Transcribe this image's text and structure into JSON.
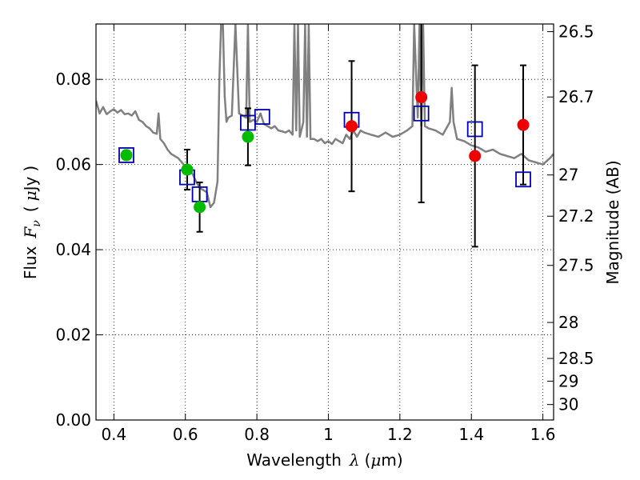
{
  "chart_data": {
    "type": "scatter",
    "xlabel": {
      "prefix": "Wavelength",
      "symbol": "λ",
      "unit_open": "(",
      "unit_mu": "μ",
      "unit_rest": "m)"
    },
    "ylabel": {
      "prefix": "Flux",
      "symbol": "F",
      "subscript": "ν",
      "unit_open": "(",
      "unit_mu": "μ",
      "unit_rest": "Jy",
      "unit_close": ")"
    },
    "y2label": "Magnitude (AB)",
    "xlim": [
      0.35,
      1.63
    ],
    "ylim": [
      0.0,
      0.093
    ],
    "grid": true,
    "x_ticks": [
      {
        "value": 0.4,
        "label": "0.4"
      },
      {
        "value": 0.6,
        "label": "0.6"
      },
      {
        "value": 0.8,
        "label": "0.8"
      },
      {
        "value": 1.0,
        "label": "1"
      },
      {
        "value": 1.2,
        "label": "1.2"
      },
      {
        "value": 1.4,
        "label": "1.4"
      },
      {
        "value": 1.6,
        "label": "1.6"
      }
    ],
    "y_ticks": [
      {
        "value": 0.0,
        "label": "0.00"
      },
      {
        "value": 0.02,
        "label": "0.02"
      },
      {
        "value": 0.04,
        "label": "0.04"
      },
      {
        "value": 0.06,
        "label": "0.06"
      },
      {
        "value": 0.08,
        "label": "0.08"
      }
    ],
    "y2_ticks": [
      {
        "mag": 26.5,
        "label": "26.5"
      },
      {
        "mag": 26.7,
        "label": "26.7"
      },
      {
        "mag": 27.0,
        "label": "27"
      },
      {
        "mag": 27.2,
        "label": "27.2"
      },
      {
        "mag": 27.5,
        "label": "27.5"
      },
      {
        "mag": 28.0,
        "label": "28"
      },
      {
        "mag": 28.5,
        "label": "28.5"
      },
      {
        "mag": 29.0,
        "label": "29"
      },
      {
        "mag": 30.0,
        "label": "30"
      }
    ],
    "colors": {
      "model": "#808080",
      "green": "#00bb00",
      "red": "#ee0000",
      "square": "#0000aa",
      "errorbar": "#000000",
      "grid": "#000000"
    },
    "series": [
      {
        "marker": "line",
        "color": "model",
        "x": [
          0.35,
          0.36,
          0.37,
          0.38,
          0.39,
          0.4,
          0.41,
          0.42,
          0.43,
          0.44,
          0.45,
          0.46,
          0.47,
          0.48,
          0.49,
          0.5,
          0.51,
          0.52,
          0.525,
          0.53,
          0.54,
          0.55,
          0.56,
          0.57,
          0.58,
          0.59,
          0.6,
          0.61,
          0.62,
          0.63,
          0.64,
          0.65,
          0.66,
          0.67,
          0.68,
          0.69,
          0.695,
          0.7,
          0.705,
          0.71,
          0.715,
          0.72,
          0.73,
          0.74,
          0.75,
          0.76,
          0.77,
          0.775,
          0.78,
          0.79,
          0.8,
          0.81,
          0.82,
          0.83,
          0.84,
          0.85,
          0.86,
          0.87,
          0.88,
          0.89,
          0.9,
          0.905,
          0.91,
          0.915,
          0.92,
          0.93,
          0.935,
          0.94,
          0.945,
          0.95,
          0.96,
          0.97,
          0.98,
          0.99,
          1.0,
          1.01,
          1.02,
          1.03,
          1.04,
          1.05,
          1.06,
          1.07,
          1.08,
          1.09,
          1.1,
          1.12,
          1.14,
          1.16,
          1.18,
          1.2,
          1.22,
          1.235,
          1.24,
          1.25,
          1.255,
          1.26,
          1.265,
          1.27,
          1.28,
          1.3,
          1.32,
          1.34,
          1.345,
          1.35,
          1.36,
          1.38,
          1.4,
          1.42,
          1.44,
          1.46,
          1.48,
          1.5,
          1.52,
          1.54,
          1.56,
          1.58,
          1.6,
          1.62,
          1.63
        ],
        "y": [
          0.075,
          0.072,
          0.0735,
          0.0718,
          0.0725,
          0.073,
          0.0722,
          0.0728,
          0.0718,
          0.072,
          0.0715,
          0.0725,
          0.0705,
          0.07,
          0.069,
          0.0685,
          0.0675,
          0.0672,
          0.072,
          0.066,
          0.065,
          0.0635,
          0.0625,
          0.062,
          0.0615,
          0.0605,
          0.0595,
          0.0588,
          0.0578,
          0.056,
          0.0545,
          0.054,
          0.0535,
          0.05,
          0.051,
          0.056,
          0.08,
          0.093,
          0.093,
          0.076,
          0.07,
          0.071,
          0.0715,
          0.093,
          0.072,
          0.0715,
          0.071,
          0.093,
          0.07,
          0.0705,
          0.07,
          0.072,
          0.0695,
          0.069,
          0.0685,
          0.069,
          0.068,
          0.0678,
          0.0675,
          0.068,
          0.067,
          0.093,
          0.068,
          0.093,
          0.0665,
          0.07,
          0.093,
          0.0665,
          0.093,
          0.066,
          0.066,
          0.0655,
          0.066,
          0.065,
          0.0655,
          0.0648,
          0.066,
          0.0655,
          0.065,
          0.067,
          0.066,
          0.068,
          0.0665,
          0.068,
          0.0675,
          0.067,
          0.0665,
          0.0675,
          0.0665,
          0.067,
          0.068,
          0.069,
          0.093,
          0.071,
          0.093,
          0.069,
          0.093,
          0.069,
          0.0685,
          0.068,
          0.067,
          0.07,
          0.078,
          0.07,
          0.066,
          0.0655,
          0.0645,
          0.064,
          0.063,
          0.0635,
          0.0625,
          0.062,
          0.0615,
          0.0625,
          0.061,
          0.0605,
          0.06,
          0.0615,
          0.0625
        ]
      },
      {
        "marker": "square",
        "color": "square",
        "x": [
          0.435,
          0.605,
          0.64,
          0.775,
          0.815,
          1.065,
          1.26,
          1.41,
          1.545
        ],
        "y": [
          0.0622,
          0.057,
          0.053,
          0.0698,
          0.0712,
          0.0705,
          0.072,
          0.0683,
          0.0565
        ]
      },
      {
        "marker": "circle",
        "color": "green",
        "x": [
          0.435,
          0.605,
          0.64,
          0.775
        ],
        "y": [
          0.0622,
          0.0588,
          0.05,
          0.0665
        ],
        "err": [
          0,
          0.0047,
          0.0058,
          0.0067
        ]
      },
      {
        "marker": "circle",
        "color": "red",
        "x": [
          1.065,
          1.26,
          1.41,
          1.545
        ],
        "y": [
          0.069,
          0.0758,
          0.062,
          0.0693
        ],
        "err": [
          0.0153,
          0.0247,
          0.0213,
          0.014
        ]
      }
    ]
  }
}
